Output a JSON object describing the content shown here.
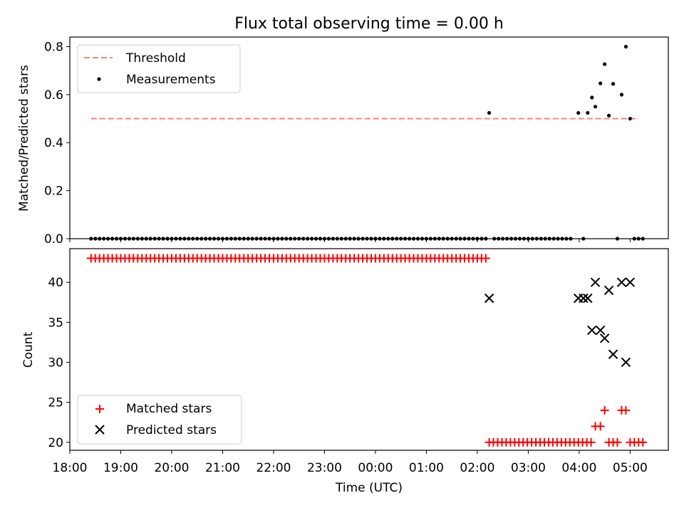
{
  "figure": {
    "title": "Flux total observing time = 0.00 h"
  },
  "chart_data": [
    {
      "type": "scatter",
      "title": "Flux total observing time = 0.00 h",
      "xlabel": "",
      "ylabel": "Matched/Predicted stars",
      "xlim": [
        "18:00",
        "05:45"
      ],
      "ylim": [
        0,
        0.84
      ],
      "yticks": [
        0.0,
        0.2,
        0.4,
        0.6,
        0.8
      ],
      "ytick_labels": [
        "0.0",
        "0.2",
        "0.4",
        "0.6",
        "0.8"
      ],
      "xticks": [
        "18:00",
        "19:00",
        "20:00",
        "21:00",
        "22:00",
        "23:00",
        "00:00",
        "01:00",
        "02:00",
        "03:00",
        "04:00",
        "05:00"
      ],
      "grid": false,
      "legend_position": "upper-left",
      "threshold": {
        "name": "Threshold",
        "value": 0.5,
        "x_start": "18:25",
        "x_end": "05:10",
        "color": "#ff7f7f",
        "style": "dashed"
      },
      "series": [
        {
          "name": "Measurements",
          "color": "#000000",
          "marker": "dot",
          "zero_run": {
            "start": "18:25",
            "end": "02:10",
            "step_minutes": 5,
            "value": 0
          },
          "points": [
            {
              "x": "02:14",
              "y": 0.524
            },
            {
              "x": "02:20",
              "y": 0
            },
            {
              "x": "02:25",
              "y": 0
            },
            {
              "x": "02:30",
              "y": 0
            },
            {
              "x": "02:35",
              "y": 0
            },
            {
              "x": "02:40",
              "y": 0
            },
            {
              "x": "02:45",
              "y": 0
            },
            {
              "x": "02:50",
              "y": 0
            },
            {
              "x": "02:55",
              "y": 0
            },
            {
              "x": "03:00",
              "y": 0
            },
            {
              "x": "03:05",
              "y": 0
            },
            {
              "x": "03:10",
              "y": 0
            },
            {
              "x": "03:15",
              "y": 0
            },
            {
              "x": "03:20",
              "y": 0
            },
            {
              "x": "03:25",
              "y": 0
            },
            {
              "x": "03:30",
              "y": 0
            },
            {
              "x": "03:35",
              "y": 0
            },
            {
              "x": "03:40",
              "y": 0
            },
            {
              "x": "03:45",
              "y": 0
            },
            {
              "x": "03:50",
              "y": 0
            },
            {
              "x": "03:59",
              "y": 0.524
            },
            {
              "x": "04:05",
              "y": 0
            },
            {
              "x": "04:10",
              "y": 0.524
            },
            {
              "x": "04:15",
              "y": 0.588
            },
            {
              "x": "04:19",
              "y": 0.55
            },
            {
              "x": "04:25",
              "y": 0.647
            },
            {
              "x": "04:30",
              "y": 0.727
            },
            {
              "x": "04:35",
              "y": 0.513
            },
            {
              "x": "04:40",
              "y": 0.645
            },
            {
              "x": "04:45",
              "y": 0
            },
            {
              "x": "04:50",
              "y": 0.6
            },
            {
              "x": "04:55",
              "y": 0.8
            },
            {
              "x": "05:00",
              "y": 0.5
            },
            {
              "x": "05:05",
              "y": 0
            },
            {
              "x": "05:10",
              "y": 0
            },
            {
              "x": "05:15",
              "y": 0
            }
          ]
        }
      ]
    },
    {
      "type": "scatter",
      "title": "",
      "xlabel": "Time (UTC)",
      "ylabel": "Count",
      "xlim": [
        "18:00",
        "05:45"
      ],
      "ylim": [
        19.0,
        44.2
      ],
      "yticks": [
        20,
        25,
        30,
        35,
        40
      ],
      "ytick_labels": [
        "20",
        "25",
        "30",
        "35",
        "40"
      ],
      "xticks": [
        "18:00",
        "19:00",
        "20:00",
        "21:00",
        "22:00",
        "23:00",
        "00:00",
        "01:00",
        "02:00",
        "03:00",
        "04:00",
        "05:00"
      ],
      "grid": false,
      "legend_position": "lower-left",
      "series": [
        {
          "name": "Matched stars",
          "color": "#ff0000",
          "marker": "plus",
          "constant_runs": [
            {
              "start": "18:25",
              "end": "02:10",
              "step_minutes": 5,
              "value": 43
            },
            {
              "start": "02:14",
              "end": "04:14",
              "step_minutes": 5,
              "value": 20
            }
          ],
          "points": [
            {
              "x": "04:19",
              "y": 22
            },
            {
              "x": "04:25",
              "y": 22
            },
            {
              "x": "04:30",
              "y": 24
            },
            {
              "x": "04:35",
              "y": 20
            },
            {
              "x": "04:40",
              "y": 20
            },
            {
              "x": "04:45",
              "y": 20
            },
            {
              "x": "04:50",
              "y": 24
            },
            {
              "x": "04:55",
              "y": 24
            },
            {
              "x": "05:00",
              "y": 20
            },
            {
              "x": "05:05",
              "y": 20
            },
            {
              "x": "05:10",
              "y": 20
            },
            {
              "x": "05:15",
              "y": 20
            }
          ]
        },
        {
          "name": "Predicted stars",
          "color": "#000000",
          "marker": "x",
          "points": [
            {
              "x": "02:14",
              "y": 38
            },
            {
              "x": "03:59",
              "y": 38
            },
            {
              "x": "04:05",
              "y": 38
            },
            {
              "x": "04:10",
              "y": 38
            },
            {
              "x": "04:15",
              "y": 34
            },
            {
              "x": "04:19",
              "y": 40
            },
            {
              "x": "04:25",
              "y": 34
            },
            {
              "x": "04:30",
              "y": 33
            },
            {
              "x": "04:35",
              "y": 39
            },
            {
              "x": "04:40",
              "y": 31
            },
            {
              "x": "04:50",
              "y": 40
            },
            {
              "x": "04:55",
              "y": 30
            },
            {
              "x": "05:00",
              "y": 40
            }
          ]
        }
      ]
    }
  ]
}
